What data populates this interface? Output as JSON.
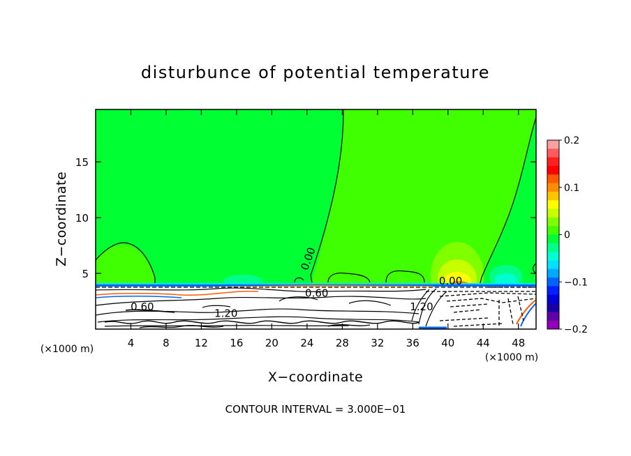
{
  "chart_data": {
    "type": "contour",
    "title": "disturbunce of potential temperature",
    "xlabel": "X−coordinate",
    "ylabel": "Z−coordinate",
    "x_unit_left": "(×1000 m)",
    "x_unit_right": "(×1000 m)",
    "x_ticks": [
      4,
      8,
      12,
      16,
      20,
      24,
      28,
      32,
      36,
      40,
      44,
      48
    ],
    "y_ticks": [
      5,
      10,
      15
    ],
    "xlim": [
      0,
      50
    ],
    "ylim": [
      0,
      19.7
    ],
    "colorbar": {
      "range": [
        -0.2,
        0.2
      ],
      "tick_labels": [
        "0.2",
        "0.1",
        "0",
        "−0.1",
        "−0.2"
      ],
      "tick_values": [
        0.2,
        0.1,
        0,
        -0.1,
        -0.2
      ],
      "colors": [
        "#f9a0a0",
        "#ff5b5b",
        "#ff2020",
        "#ff0000",
        "#ff5a00",
        "#ff8c00",
        "#ffc400",
        "#ffff00",
        "#c8ff00",
        "#80ff00",
        "#40ff00",
        "#00ff33",
        "#00ff88",
        "#00ffd0",
        "#00e0ff",
        "#00a8ff",
        "#0064ff",
        "#0020ff",
        "#0000d8",
        "#1800a8",
        "#6000a8",
        "#9000b8"
      ]
    },
    "contour_labels": [
      {
        "text": "0.00",
        "x": 24.5,
        "z": 6.2
      },
      {
        "text": "0.00",
        "x": 40.3,
        "z": 4.0
      },
      {
        "text": "0.60",
        "x": 25.1,
        "z": 2.9
      },
      {
        "text": "0.60",
        "x": 5.3,
        "z": 1.7
      },
      {
        "text": "1.20",
        "x": 14.8,
        "z": 1.1
      },
      {
        "text": "1.20",
        "x": 37.0,
        "z": 1.7
      }
    ],
    "footer": "CONTOUR INTERVAL = 3.000E−01"
  }
}
